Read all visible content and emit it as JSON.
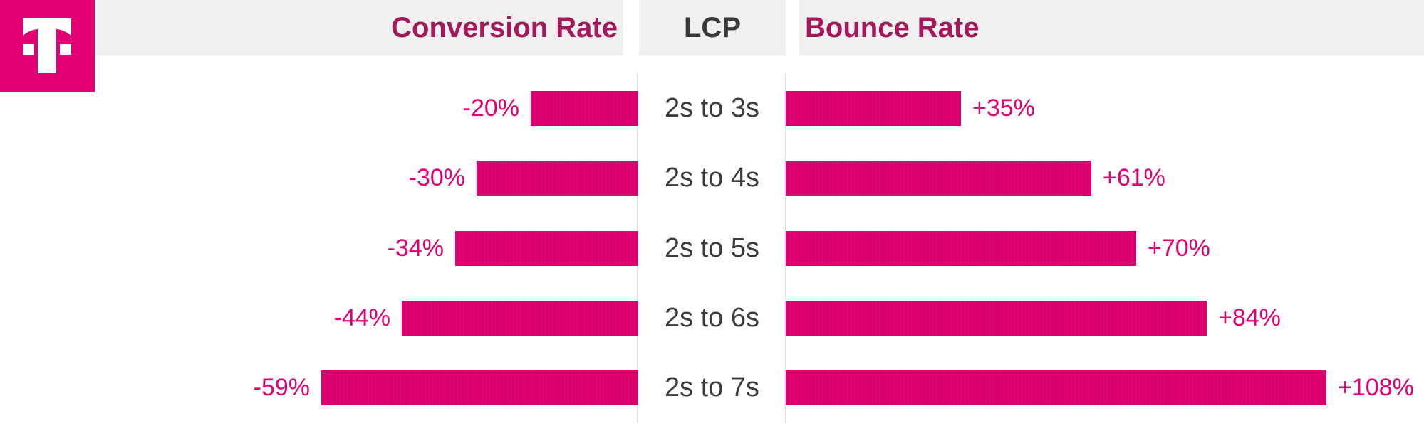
{
  "brand": {
    "name": "t-logo",
    "magenta": "#e20074"
  },
  "header": {
    "left": "Conversion Rate",
    "mid": "LCP",
    "right": "Bounce Rate",
    "left_right_text_color": "#a3195b",
    "mid_text_color": "#3a3a3a",
    "background": "#f0f0f1"
  },
  "chart_data": {
    "type": "bar",
    "subtype": "diverging-tornado",
    "center_axis_label": "LCP",
    "categories": [
      "2s to 3s",
      "2s to 4s",
      "2s to 5s",
      "2s to 6s",
      "2s to 7s"
    ],
    "series": [
      {
        "name": "Conversion Rate",
        "direction": "left",
        "values": [
          -20,
          -30,
          -34,
          -44,
          -59
        ],
        "labels": [
          "-20%",
          "-30%",
          "-34%",
          "-44%",
          "-59%"
        ]
      },
      {
        "name": "Bounce Rate",
        "direction": "right",
        "values": [
          35,
          61,
          70,
          84,
          108
        ],
        "labels": [
          "+35%",
          "+61%",
          "+70%",
          "+84%",
          "+108%"
        ]
      }
    ],
    "bar_color": "#e20074",
    "bar_texture": "vertical-stripes",
    "value_label_color": "#e20074",
    "category_label_color": "#3c3c3c",
    "axis_line_color": "#dcdcdc",
    "grid": false,
    "legend": false
  }
}
